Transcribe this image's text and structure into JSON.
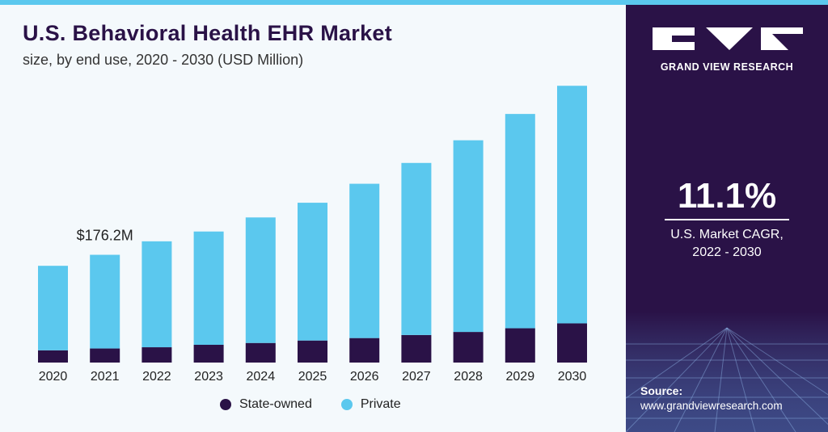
{
  "header": {
    "title": "U.S. Behavioral Health EHR Market",
    "subtitle": "size, by end use, 2020 - 2030 (USD Million)"
  },
  "chart_data": {
    "type": "bar",
    "stacked": true,
    "categories": [
      "2020",
      "2021",
      "2022",
      "2023",
      "2024",
      "2025",
      "2026",
      "2027",
      "2028",
      "2029",
      "2030"
    ],
    "series": [
      {
        "name": "State-owned",
        "color": "#2a1247",
        "values": [
          20,
          23,
          25,
          29,
          32,
          36,
          40,
          45,
          50,
          56,
          64
        ]
      },
      {
        "name": "Private",
        "color": "#5bc8ee",
        "values": [
          138,
          153,
          173,
          185,
          205,
          225,
          252,
          281,
          313,
          350,
          388
        ]
      }
    ],
    "annotations": [
      {
        "category": "2021",
        "text": "$176.2M"
      }
    ],
    "ylim": [
      0,
      480
    ],
    "grid": false,
    "legend_position": "bottom"
  },
  "legend": {
    "items": [
      {
        "label": "State-owned",
        "color": "#2a1247"
      },
      {
        "label": "Private",
        "color": "#5bc8ee"
      }
    ]
  },
  "sidebar": {
    "brand": "GRAND VIEW RESEARCH",
    "cagr_value": "11.1%",
    "cagr_line1": "U.S. Market CAGR,",
    "cagr_line2": "2022 - 2030",
    "source_label": "Source:",
    "source_url": "www.grandviewresearch.com"
  }
}
